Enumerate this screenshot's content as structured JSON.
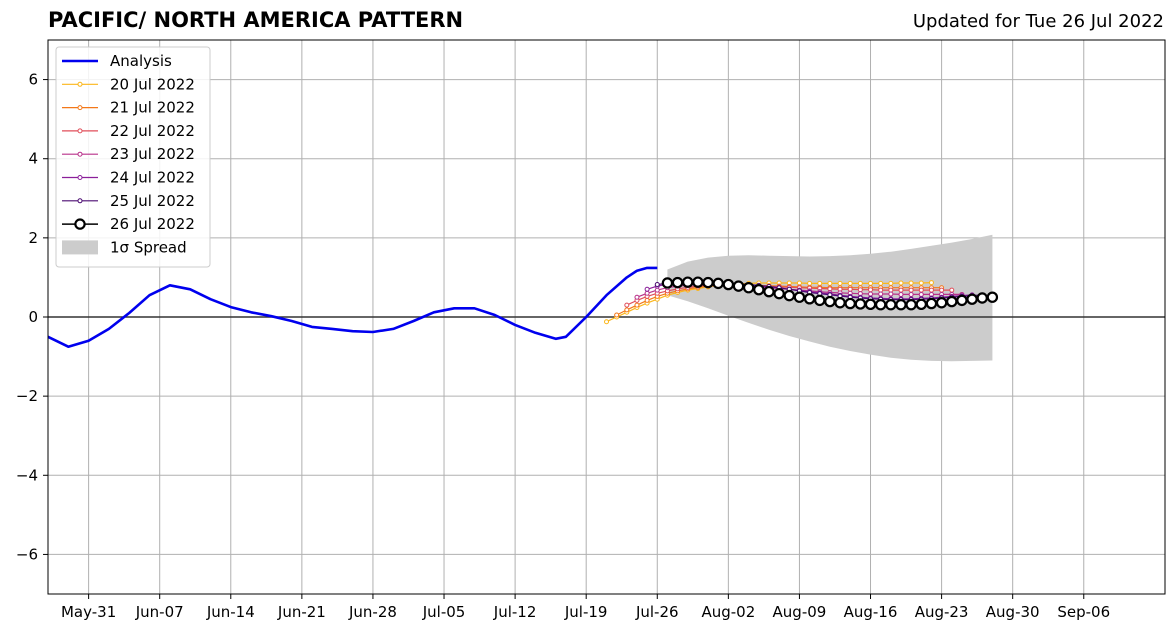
{
  "header": {
    "title": "PACIFIC/ NORTH AMERICA PATTERN",
    "updated": "Updated for Tue 26 Jul 2022"
  },
  "chart_data": {
    "type": "line",
    "title": "PACIFIC/ NORTH AMERICA PATTERN",
    "subtitle": "Updated for Tue 26 Jul 2022",
    "xlabel": "",
    "ylabel": "",
    "x_type": "date",
    "xlim": [
      "2022-05-27",
      "2022-09-14"
    ],
    "ylim": [
      -7,
      7
    ],
    "x_ticks": [
      {
        "date": "2022-05-31",
        "label": "May-31"
      },
      {
        "date": "2022-06-07",
        "label": "Jun-07"
      },
      {
        "date": "2022-06-14",
        "label": "Jun-14"
      },
      {
        "date": "2022-06-21",
        "label": "Jun-21"
      },
      {
        "date": "2022-06-28",
        "label": "Jun-28"
      },
      {
        "date": "2022-07-05",
        "label": "Jul-05"
      },
      {
        "date": "2022-07-12",
        "label": "Jul-12"
      },
      {
        "date": "2022-07-19",
        "label": "Jul-19"
      },
      {
        "date": "2022-07-26",
        "label": "Jul-26"
      },
      {
        "date": "2022-08-02",
        "label": "Aug-02"
      },
      {
        "date": "2022-08-09",
        "label": "Aug-09"
      },
      {
        "date": "2022-08-16",
        "label": "Aug-16"
      },
      {
        "date": "2022-08-23",
        "label": "Aug-23"
      },
      {
        "date": "2022-08-30",
        "label": "Aug-30"
      },
      {
        "date": "2022-09-06",
        "label": "Sep-06"
      }
    ],
    "y_ticks": [
      {
        "value": 6,
        "label": "6"
      },
      {
        "value": 4,
        "label": "4"
      },
      {
        "value": 2,
        "label": "2"
      },
      {
        "value": 0,
        "label": "0"
      },
      {
        "value": -2,
        "label": "−2"
      },
      {
        "value": -4,
        "label": "−4"
      },
      {
        "value": -6,
        "label": "−6"
      }
    ],
    "grid": true,
    "legend_position": "top-left",
    "series": [
      {
        "name": "Analysis",
        "color": "#0000ee",
        "style": "analysis",
        "x": [
          "2022-05-27",
          "2022-05-29",
          "2022-05-31",
          "2022-06-02",
          "2022-06-04",
          "2022-06-06",
          "2022-06-08",
          "2022-06-10",
          "2022-06-12",
          "2022-06-14",
          "2022-06-16",
          "2022-06-18",
          "2022-06-20",
          "2022-06-22",
          "2022-06-24",
          "2022-06-26",
          "2022-06-28",
          "2022-06-30",
          "2022-07-02",
          "2022-07-04",
          "2022-07-06",
          "2022-07-08",
          "2022-07-10",
          "2022-07-12",
          "2022-07-14",
          "2022-07-16",
          "2022-07-17",
          "2022-07-19",
          "2022-07-21",
          "2022-07-23",
          "2022-07-24",
          "2022-07-25",
          "2022-07-26"
        ],
        "values": [
          -0.5,
          -0.75,
          -0.6,
          -0.3,
          0.1,
          0.55,
          0.8,
          0.7,
          0.45,
          0.25,
          0.12,
          0.02,
          -0.1,
          -0.25,
          -0.3,
          -0.36,
          -0.38,
          -0.3,
          -0.1,
          0.12,
          0.22,
          0.22,
          0.05,
          -0.2,
          -0.4,
          -0.55,
          -0.5,
          0.0,
          0.55,
          1.0,
          1.17,
          1.24,
          1.24
        ]
      },
      {
        "name": "20 Jul 2022",
        "color": "#fbb61a",
        "style": "forecast",
        "x": [
          "2022-07-21",
          "2022-07-22",
          "2022-07-23",
          "2022-07-24",
          "2022-07-25",
          "2022-07-26",
          "2022-07-27",
          "2022-07-28",
          "2022-07-29",
          "2022-07-30",
          "2022-07-31",
          "2022-08-01",
          "2022-08-02",
          "2022-08-03",
          "2022-08-04",
          "2022-08-05",
          "2022-08-06",
          "2022-08-07",
          "2022-08-08",
          "2022-08-09",
          "2022-08-10",
          "2022-08-11",
          "2022-08-12",
          "2022-08-13",
          "2022-08-14",
          "2022-08-15",
          "2022-08-16",
          "2022-08-17",
          "2022-08-18",
          "2022-08-19",
          "2022-08-20",
          "2022-08-21",
          "2022-08-22"
        ],
        "values": [
          -0.12,
          0.0,
          0.12,
          0.24,
          0.35,
          0.45,
          0.55,
          0.62,
          0.68,
          0.72,
          0.76,
          0.8,
          0.82,
          0.84,
          0.85,
          0.86,
          0.86,
          0.86,
          0.86,
          0.86,
          0.85,
          0.85,
          0.85,
          0.85,
          0.85,
          0.85,
          0.85,
          0.85,
          0.85,
          0.86,
          0.86,
          0.86,
          0.87
        ]
      },
      {
        "name": "21 Jul 2022",
        "color": "#f37819",
        "style": "forecast",
        "x": [
          "2022-07-22",
          "2022-07-23",
          "2022-07-24",
          "2022-07-25",
          "2022-07-26",
          "2022-07-27",
          "2022-07-28",
          "2022-07-29",
          "2022-07-30",
          "2022-07-31",
          "2022-08-01",
          "2022-08-02",
          "2022-08-03",
          "2022-08-04",
          "2022-08-05",
          "2022-08-06",
          "2022-08-07",
          "2022-08-08",
          "2022-08-09",
          "2022-08-10",
          "2022-08-11",
          "2022-08-12",
          "2022-08-13",
          "2022-08-14",
          "2022-08-15",
          "2022-08-16",
          "2022-08-17",
          "2022-08-18",
          "2022-08-19",
          "2022-08-20",
          "2022-08-21",
          "2022-08-22",
          "2022-08-23"
        ],
        "values": [
          0.05,
          0.18,
          0.3,
          0.42,
          0.52,
          0.6,
          0.66,
          0.71,
          0.75,
          0.78,
          0.8,
          0.81,
          0.81,
          0.8,
          0.8,
          0.79,
          0.78,
          0.77,
          0.76,
          0.75,
          0.75,
          0.74,
          0.74,
          0.74,
          0.74,
          0.74,
          0.74,
          0.74,
          0.74,
          0.74,
          0.74,
          0.74,
          0.74
        ]
      },
      {
        "name": "22 Jul 2022",
        "color": "#e04e5a",
        "style": "forecast",
        "x": [
          "2022-07-23",
          "2022-07-24",
          "2022-07-25",
          "2022-07-26",
          "2022-07-27",
          "2022-07-28",
          "2022-07-29",
          "2022-07-30",
          "2022-07-31",
          "2022-08-01",
          "2022-08-02",
          "2022-08-03",
          "2022-08-04",
          "2022-08-05",
          "2022-08-06",
          "2022-08-07",
          "2022-08-08",
          "2022-08-09",
          "2022-08-10",
          "2022-08-11",
          "2022-08-12",
          "2022-08-13",
          "2022-08-14",
          "2022-08-15",
          "2022-08-16",
          "2022-08-17",
          "2022-08-18",
          "2022-08-19",
          "2022-08-20",
          "2022-08-21",
          "2022-08-22",
          "2022-08-23",
          "2022-08-24"
        ],
        "values": [
          0.3,
          0.42,
          0.52,
          0.6,
          0.66,
          0.71,
          0.75,
          0.78,
          0.8,
          0.81,
          0.81,
          0.8,
          0.79,
          0.78,
          0.77,
          0.76,
          0.75,
          0.74,
          0.73,
          0.72,
          0.71,
          0.7,
          0.7,
          0.69,
          0.69,
          0.68,
          0.68,
          0.68,
          0.68,
          0.68,
          0.68,
          0.68,
          0.68
        ]
      },
      {
        "name": "23 Jul 2022",
        "color": "#b8308a",
        "style": "forecast",
        "x": [
          "2022-07-24",
          "2022-07-25",
          "2022-07-26",
          "2022-07-27",
          "2022-07-28",
          "2022-07-29",
          "2022-07-30",
          "2022-07-31",
          "2022-08-01",
          "2022-08-02",
          "2022-08-03",
          "2022-08-04",
          "2022-08-05",
          "2022-08-06",
          "2022-08-07",
          "2022-08-08",
          "2022-08-09",
          "2022-08-10",
          "2022-08-11",
          "2022-08-12",
          "2022-08-13",
          "2022-08-14",
          "2022-08-15",
          "2022-08-16",
          "2022-08-17",
          "2022-08-18",
          "2022-08-19",
          "2022-08-20",
          "2022-08-21",
          "2022-08-22",
          "2022-08-23",
          "2022-08-24",
          "2022-08-25"
        ],
        "values": [
          0.5,
          0.6,
          0.68,
          0.74,
          0.78,
          0.8,
          0.82,
          0.82,
          0.82,
          0.81,
          0.8,
          0.78,
          0.76,
          0.74,
          0.72,
          0.7,
          0.68,
          0.66,
          0.64,
          0.62,
          0.61,
          0.6,
          0.59,
          0.58,
          0.58,
          0.58,
          0.57,
          0.57,
          0.57,
          0.57,
          0.57,
          0.57,
          0.57
        ]
      },
      {
        "name": "24 Jul 2022",
        "color": "#8b1f9a",
        "style": "forecast",
        "x": [
          "2022-07-25",
          "2022-07-26",
          "2022-07-27",
          "2022-07-28",
          "2022-07-29",
          "2022-07-30",
          "2022-07-31",
          "2022-08-01",
          "2022-08-02",
          "2022-08-03",
          "2022-08-04",
          "2022-08-05",
          "2022-08-06",
          "2022-08-07",
          "2022-08-08",
          "2022-08-09",
          "2022-08-10",
          "2022-08-11",
          "2022-08-12",
          "2022-08-13",
          "2022-08-14",
          "2022-08-15",
          "2022-08-16",
          "2022-08-17",
          "2022-08-18",
          "2022-08-19",
          "2022-08-20",
          "2022-08-21",
          "2022-08-22",
          "2022-08-23",
          "2022-08-24",
          "2022-08-25",
          "2022-08-26"
        ],
        "values": [
          0.7,
          0.78,
          0.83,
          0.86,
          0.87,
          0.87,
          0.86,
          0.85,
          0.84,
          0.82,
          0.8,
          0.78,
          0.76,
          0.73,
          0.7,
          0.67,
          0.64,
          0.61,
          0.58,
          0.55,
          0.52,
          0.5,
          0.48,
          0.47,
          0.46,
          0.46,
          0.46,
          0.47,
          0.48,
          0.5,
          0.52,
          0.54,
          0.56
        ]
      },
      {
        "name": "25 Jul 2022",
        "color": "#4b0c72",
        "style": "forecast",
        "x": [
          "2022-07-26",
          "2022-07-27",
          "2022-07-28",
          "2022-07-29",
          "2022-07-30",
          "2022-07-31",
          "2022-08-01",
          "2022-08-02",
          "2022-08-03",
          "2022-08-04",
          "2022-08-05",
          "2022-08-06",
          "2022-08-07",
          "2022-08-08",
          "2022-08-09",
          "2022-08-10",
          "2022-08-11",
          "2022-08-12",
          "2022-08-13",
          "2022-08-14",
          "2022-08-15",
          "2022-08-16",
          "2022-08-17",
          "2022-08-18",
          "2022-08-19",
          "2022-08-20",
          "2022-08-21",
          "2022-08-22",
          "2022-08-23",
          "2022-08-24",
          "2022-08-25",
          "2022-08-26",
          "2022-08-27"
        ],
        "values": [
          0.82,
          0.86,
          0.88,
          0.89,
          0.89,
          0.88,
          0.87,
          0.86,
          0.84,
          0.82,
          0.8,
          0.77,
          0.74,
          0.7,
          0.66,
          0.62,
          0.59,
          0.56,
          0.53,
          0.5,
          0.48,
          0.46,
          0.45,
          0.44,
          0.44,
          0.44,
          0.45,
          0.46,
          0.48,
          0.5,
          0.52,
          0.54,
          0.56
        ]
      },
      {
        "name": "26 Jul 2022",
        "color": "#000000",
        "style": "current",
        "x": [
          "2022-07-27",
          "2022-07-28",
          "2022-07-29",
          "2022-07-30",
          "2022-07-31",
          "2022-08-01",
          "2022-08-02",
          "2022-08-03",
          "2022-08-04",
          "2022-08-05",
          "2022-08-06",
          "2022-08-07",
          "2022-08-08",
          "2022-08-09",
          "2022-08-10",
          "2022-08-11",
          "2022-08-12",
          "2022-08-13",
          "2022-08-14",
          "2022-08-15",
          "2022-08-16",
          "2022-08-17",
          "2022-08-18",
          "2022-08-19",
          "2022-08-20",
          "2022-08-21",
          "2022-08-22",
          "2022-08-23",
          "2022-08-24",
          "2022-08-25",
          "2022-08-26",
          "2022-08-27",
          "2022-08-28"
        ],
        "values": [
          0.86,
          0.87,
          0.88,
          0.88,
          0.87,
          0.85,
          0.82,
          0.78,
          0.74,
          0.69,
          0.64,
          0.59,
          0.54,
          0.5,
          0.46,
          0.42,
          0.39,
          0.36,
          0.34,
          0.33,
          0.32,
          0.31,
          0.31,
          0.31,
          0.31,
          0.32,
          0.34,
          0.36,
          0.39,
          0.42,
          0.45,
          0.48,
          0.5
        ]
      }
    ],
    "spread": {
      "name": "1σ Spread",
      "color": "#cccccc",
      "x": [
        "2022-07-27",
        "2022-07-29",
        "2022-07-31",
        "2022-08-02",
        "2022-08-04",
        "2022-08-06",
        "2022-08-08",
        "2022-08-10",
        "2022-08-12",
        "2022-08-14",
        "2022-08-16",
        "2022-08-18",
        "2022-08-20",
        "2022-08-22",
        "2022-08-24",
        "2022-08-26",
        "2022-08-28"
      ],
      "upper": [
        1.2,
        1.4,
        1.5,
        1.55,
        1.56,
        1.55,
        1.54,
        1.53,
        1.54,
        1.56,
        1.6,
        1.65,
        1.72,
        1.8,
        1.88,
        1.97,
        2.08
      ],
      "lower": [
        0.55,
        0.4,
        0.22,
        0.03,
        -0.15,
        -0.32,
        -0.48,
        -0.62,
        -0.75,
        -0.86,
        -0.95,
        -1.03,
        -1.08,
        -1.11,
        -1.12,
        -1.11,
        -1.1
      ]
    }
  }
}
